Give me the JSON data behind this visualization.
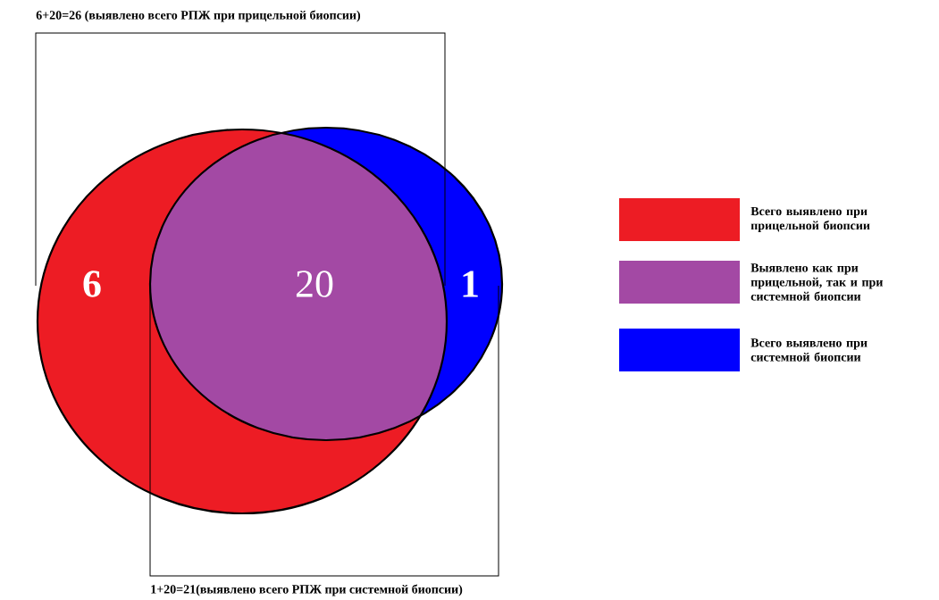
{
  "chart_data": {
    "type": "other",
    "categories": [
      "Всего выявлено при прицельной биопсии",
      "Выявлено как при прицельной, так и при системной биопсии",
      "Всего выявлено при системной биопсии"
    ],
    "values": [
      6,
      20,
      1
    ],
    "colors": [
      "#ed1c24",
      "#a349a4",
      "#0000ff"
    ],
    "data_labels": true,
    "annotations": [
      "6+20=26  (выявлено всего РПЖ при прицельной биопсии)",
      "1+20=21(выявлено всего РПЖ при системной биопсии)"
    ]
  }
}
